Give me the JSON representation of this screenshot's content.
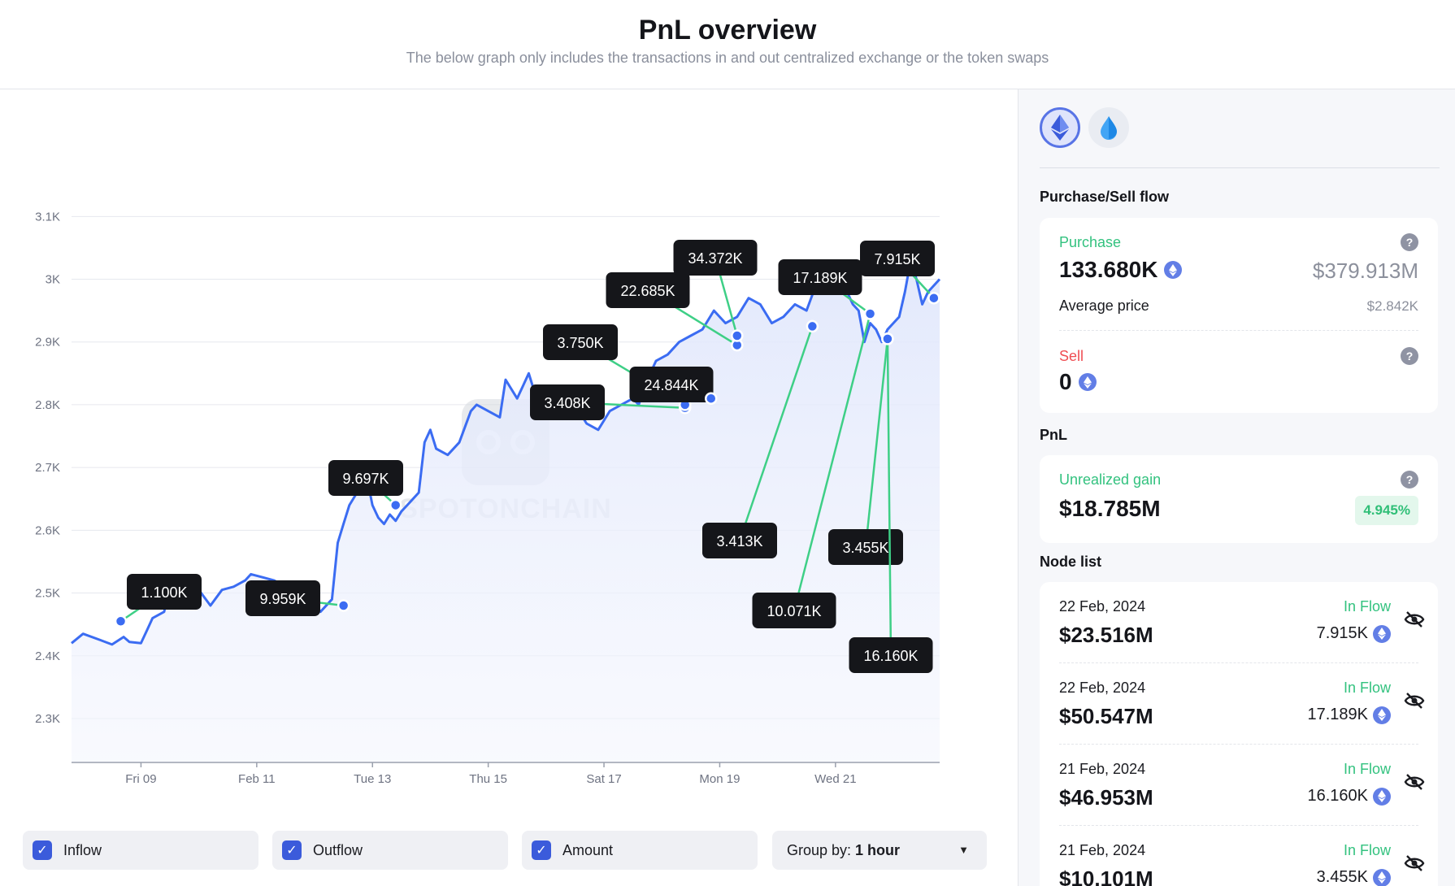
{
  "header": {
    "title": "PnL overview",
    "subtitle": "The below graph only includes the transactions in and out centralized exchange or the token swaps"
  },
  "chart_data": {
    "type": "line",
    "ylim": [
      2230,
      3160
    ],
    "y_ticks": [
      2300,
      2400,
      2500,
      2600,
      2700,
      2800,
      2900,
      3000,
      3100
    ],
    "y_tick_labels": [
      "2.3K",
      "2.4K",
      "2.5K",
      "2.6K",
      "2.7K",
      "2.8K",
      "2.9K",
      "3K",
      "3.1K"
    ],
    "xlim": [
      0,
      15
    ],
    "x_ticks": [
      1.2,
      3.2,
      5.2,
      7.2,
      9.2,
      11.2,
      13.2
    ],
    "x_tick_labels": [
      "Fri 09",
      "Feb 11",
      "Tue 13",
      "Thu 15",
      "Sat 17",
      "Mon 19",
      "Wed 21"
    ],
    "series": [
      {
        "x": [
          0,
          0.2,
          0.5,
          0.7,
          0.9,
          1.0,
          1.2,
          1.3,
          1.4,
          1.6,
          1.7,
          1.8,
          2.0,
          2.2,
          2.4,
          2.6,
          2.8,
          3.0,
          3.1,
          3.3,
          3.5,
          3.7,
          3.9,
          4.1,
          4.3,
          4.5,
          4.6,
          4.7,
          4.8,
          4.9,
          5.0,
          5.1,
          5.2,
          5.3,
          5.4,
          5.5,
          5.6,
          5.7,
          5.8,
          5.9,
          6.0,
          6.1,
          6.2,
          6.3,
          6.5,
          6.7,
          6.9,
          7.0,
          7.2,
          7.4,
          7.5,
          7.7,
          7.8,
          7.9,
          8.0,
          8.2,
          8.4,
          8.6,
          8.7,
          8.9,
          9.1,
          9.3,
          9.5,
          9.7,
          9.8,
          9.9,
          10.1,
          10.3,
          10.5,
          10.7,
          10.9,
          11.1,
          11.3,
          11.5,
          11.7,
          11.9,
          12.1,
          12.3,
          12.5,
          12.7,
          12.9,
          13.0,
          13.2,
          13.4,
          13.5,
          13.6,
          13.7,
          13.8,
          13.9,
          14.0,
          14.1,
          14.2,
          14.3,
          14.4,
          14.5,
          14.6,
          14.7,
          14.8,
          14.9,
          15.0
        ],
        "values": [
          2420,
          2435,
          2425,
          2418,
          2430,
          2422,
          2420,
          2440,
          2460,
          2470,
          2510,
          2520,
          2500,
          2505,
          2480,
          2505,
          2510,
          2520,
          2530,
          2525,
          2520,
          2510,
          2500,
          2495,
          2470,
          2490,
          2580,
          2610,
          2640,
          2655,
          2670,
          2685,
          2640,
          2620,
          2610,
          2625,
          2615,
          2630,
          2640,
          2650,
          2660,
          2740,
          2760,
          2730,
          2720,
          2740,
          2790,
          2800,
          2790,
          2780,
          2840,
          2810,
          2830,
          2850,
          2820,
          2830,
          2790,
          2780,
          2800,
          2770,
          2760,
          2790,
          2800,
          2810,
          2800,
          2830,
          2870,
          2880,
          2900,
          2910,
          2920,
          2950,
          2930,
          2940,
          2970,
          2960,
          2930,
          2940,
          2960,
          2950,
          3000,
          3020,
          3010,
          2980,
          2960,
          2950,
          2900,
          2930,
          2920,
          2900,
          2920,
          2930,
          2940,
          2980,
          3030,
          3000,
          2960,
          2980,
          2990,
          3000
        ]
      }
    ],
    "annotations": [
      {
        "label": "1.100K",
        "x": 0.85,
        "y": 2455
      },
      {
        "label": "9.959K",
        "x": 4.7,
        "y": 2480
      },
      {
        "label": "9.697K",
        "x": 5.6,
        "y": 2640
      },
      {
        "label": "3.408K",
        "x": 10.6,
        "y": 2795
      },
      {
        "label": "3.750K",
        "x": 10.6,
        "y": 2800
      },
      {
        "label": "24.844K",
        "x": 11.05,
        "y": 2810
      },
      {
        "label": "22.685K",
        "x": 11.5,
        "y": 2895
      },
      {
        "label": "34.372K",
        "x": 11.5,
        "y": 2910
      },
      {
        "label": "3.413K",
        "x": 12.8,
        "y": 2925
      },
      {
        "label": "10.071K",
        "x": 13.8,
        "y": 2945
      },
      {
        "label": "17.189K",
        "x": 13.8,
        "y": 2945
      },
      {
        "label": "3.455K",
        "x": 14.1,
        "y": 2905
      },
      {
        "label": "16.160K",
        "x": 14.1,
        "y": 2905
      },
      {
        "label": "7.915K",
        "x": 14.9,
        "y": 2970
      }
    ],
    "watermark": "SPOTONCHAIN"
  },
  "controls": {
    "inflow_label": "Inflow",
    "outflow_label": "Outflow",
    "amount_label": "Amount",
    "group_prefix": "Group by:",
    "group_value": "1 hour"
  },
  "sidebar": {
    "purchase_sell_title": "Purchase/Sell flow",
    "purchase_label": "Purchase",
    "purchase_amount": "133.680K",
    "purchase_usd": "$379.913M",
    "avg_price_label": "Average price",
    "avg_price_value": "$2.842K",
    "sell_label": "Sell",
    "sell_amount": "0",
    "pnl_title": "PnL",
    "unrealized_label": "Unrealized gain",
    "unrealized_value": "$18.785M",
    "unrealized_pct": "4.945%",
    "node_list_title": "Node list",
    "nodes": [
      {
        "date": "22 Feb, 2024",
        "usd": "$23.516M",
        "flow": "In Flow",
        "amount": "7.915K"
      },
      {
        "date": "22 Feb, 2024",
        "usd": "$50.547M",
        "flow": "In Flow",
        "amount": "17.189K"
      },
      {
        "date": "21 Feb, 2024",
        "usd": "$46.953M",
        "flow": "In Flow",
        "amount": "16.160K"
      },
      {
        "date": "21 Feb, 2024",
        "usd": "$10.101M",
        "flow": "In Flow",
        "amount": "3.455K"
      }
    ]
  },
  "colors": {
    "line": "#3b6cf2",
    "connector": "#3ecf86",
    "label_bg": "#15161a",
    "accent_green": "#33c27f",
    "accent_red": "#ef4d52"
  }
}
